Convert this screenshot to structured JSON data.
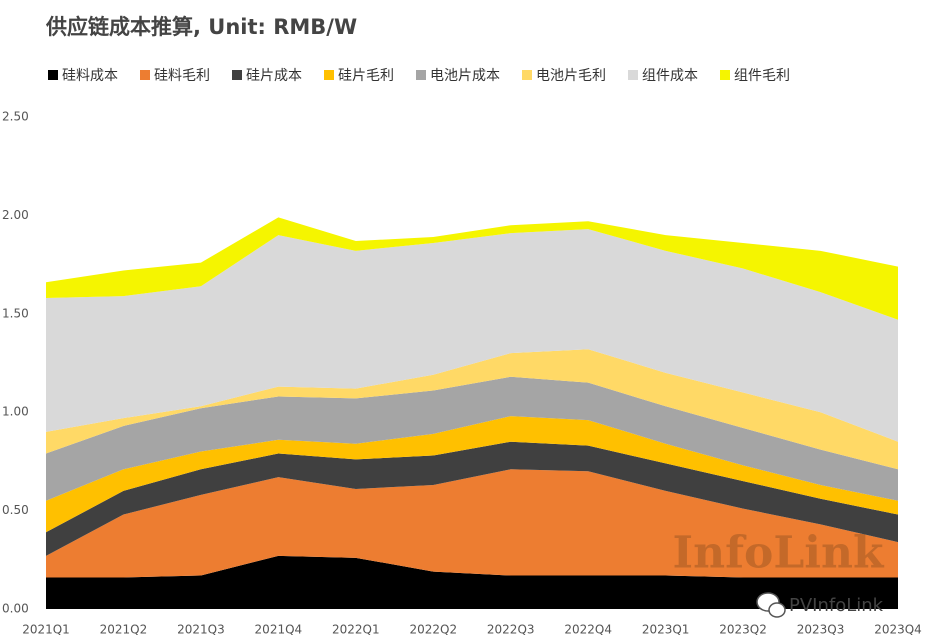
{
  "chart_data": {
    "type": "stacked_area",
    "title": "供应链成本推算, Unit: RMB/W",
    "categories": [
      "2021Q1",
      "2021Q2",
      "2021Q3",
      "2021Q4",
      "2022Q1",
      "2022Q2",
      "2022Q3",
      "2022Q4",
      "2023Q1",
      "2023Q2",
      "2023Q3",
      "2023Q4"
    ],
    "series": [
      {
        "name": "硅料成本",
        "color": "#000000",
        "values": [
          0.16,
          0.16,
          0.17,
          0.27,
          0.26,
          0.19,
          0.17,
          0.17,
          0.17,
          0.16,
          0.16,
          0.16
        ]
      },
      {
        "name": "硅料毛利",
        "color": "#ed7d31",
        "values": [
          0.11,
          0.32,
          0.41,
          0.4,
          0.35,
          0.44,
          0.54,
          0.53,
          0.43,
          0.35,
          0.27,
          0.18
        ]
      },
      {
        "name": "硅片成本",
        "color": "#404040",
        "values": [
          0.12,
          0.12,
          0.13,
          0.12,
          0.15,
          0.15,
          0.14,
          0.13,
          0.14,
          0.14,
          0.13,
          0.14
        ]
      },
      {
        "name": "硅片毛利",
        "color": "#ffc000",
        "values": [
          0.16,
          0.11,
          0.09,
          0.07,
          0.08,
          0.11,
          0.13,
          0.13,
          0.1,
          0.08,
          0.07,
          0.07
        ]
      },
      {
        "name": "电池片成本",
        "color": "#a5a5a5",
        "values": [
          0.24,
          0.22,
          0.22,
          0.22,
          0.23,
          0.22,
          0.2,
          0.19,
          0.19,
          0.19,
          0.18,
          0.16
        ]
      },
      {
        "name": "电池片毛利",
        "color": "#ffd966",
        "values": [
          0.11,
          0.04,
          0.01,
          0.05,
          0.05,
          0.08,
          0.12,
          0.17,
          0.17,
          0.18,
          0.19,
          0.14
        ]
      },
      {
        "name": "组件成本",
        "color": "#d9d9d9",
        "values": [
          0.68,
          0.62,
          0.61,
          0.77,
          0.7,
          0.67,
          0.61,
          0.61,
          0.62,
          0.63,
          0.61,
          0.62
        ]
      },
      {
        "name": "组件毛利",
        "color": "#f5f500",
        "values": [
          0.08,
          0.13,
          0.12,
          0.09,
          0.05,
          0.03,
          0.04,
          0.04,
          0.08,
          0.13,
          0.21,
          0.27
        ]
      }
    ],
    "ylim": [
      0,
      2.5
    ],
    "yticks": [
      {
        "value": 0,
        "label": "0.00"
      },
      {
        "value": 0.5,
        "label": "0.50"
      },
      {
        "value": 1,
        "label": "1.00"
      },
      {
        "value": 1.5,
        "label": "1.50"
      },
      {
        "value": 2,
        "label": "2.00"
      },
      {
        "value": 2.5,
        "label": "2.50"
      }
    ],
    "watermark": "InfoLink",
    "source": "PVInfoLink"
  }
}
